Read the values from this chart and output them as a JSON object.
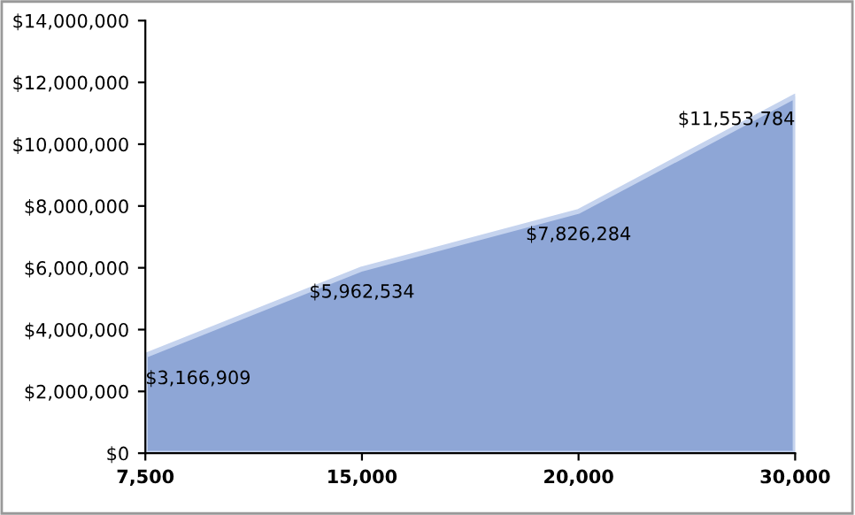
{
  "chart_data": {
    "type": "area",
    "categories": [
      "7,500",
      "15,000",
      "20,000",
      "30,000"
    ],
    "series": [
      {
        "color": "#8ea6d6",
        "values": [
          3166909,
          5962534,
          7826284,
          11553784
        ],
        "value_labels": [
          "$3,166,909",
          "$5,962,534",
          "$7,826,284",
          "$11,553,784"
        ]
      }
    ],
    "ylim": [
      0,
      14000000
    ],
    "yticks": [
      {
        "value": 0,
        "label": "$0"
      },
      {
        "value": 2000000,
        "label": "$2,000,000"
      },
      {
        "value": 4000000,
        "label": "$4,000,000"
      },
      {
        "value": 6000000,
        "label": "$6,000,000"
      },
      {
        "value": 8000000,
        "label": "$8,000,000"
      },
      {
        "value": 10000000,
        "label": "$10,000,000"
      },
      {
        "value": 12000000,
        "label": "$12,000,000"
      },
      {
        "value": 14000000,
        "label": "$14,000,000"
      }
    ],
    "grid": false
  }
}
